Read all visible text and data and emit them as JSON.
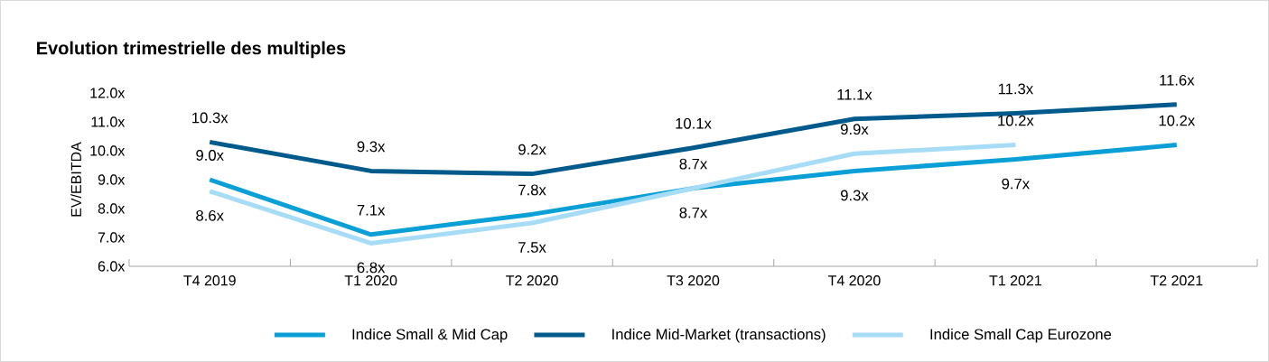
{
  "chart_data": {
    "type": "line",
    "title": "Evolution trimestrielle des multiples",
    "ylabel": "EV/EBITDA",
    "categories": [
      "T4 2019",
      "T1 2020",
      "T2 2020",
      "T3 2020",
      "T4 2020",
      "T1 2021",
      "T2 2021"
    ],
    "series": [
      {
        "name": "Indice Small & Mid Cap",
        "color": "#0b9fd8",
        "values": [
          9.0,
          7.1,
          7.8,
          8.7,
          9.3,
          9.7,
          10.2
        ],
        "value_labels": [
          "9.0x",
          "7.1x",
          "7.8x",
          "8.7x",
          "9.3x",
          "9.7x",
          "10.2x"
        ]
      },
      {
        "name": "Indice Mid-Market (transactions)",
        "color": "#005a8c",
        "values": [
          10.3,
          9.3,
          9.2,
          10.1,
          11.1,
          11.3,
          11.6
        ],
        "value_labels": [
          "10.3x",
          "9.3x",
          "9.2x",
          "10.1x",
          "11.1x",
          "11.3x",
          "11.6x"
        ]
      },
      {
        "name": "Indice Small Cap Eurozone",
        "color": "#a7dcf6",
        "values": [
          8.6,
          6.8,
          7.5,
          8.7,
          9.9,
          10.2,
          null
        ],
        "value_labels": [
          "8.6x",
          "6.8x",
          "7.5x",
          "8.7x",
          "9.9x",
          "10.2x",
          null
        ]
      }
    ],
    "ylim": [
      6,
      12
    ],
    "yticks": [
      {
        "value": 6,
        "label": "6.0x"
      },
      {
        "value": 7,
        "label": "7.0x"
      },
      {
        "value": 8,
        "label": "8.0x"
      },
      {
        "value": 9,
        "label": "9.0x"
      },
      {
        "value": 10,
        "label": "10.0x"
      },
      {
        "value": 11,
        "label": "11.0x"
      },
      {
        "value": 12,
        "label": "12.0x"
      }
    ],
    "legend": "bottom",
    "grid": false,
    "marker": "none",
    "line_style": "solid"
  }
}
